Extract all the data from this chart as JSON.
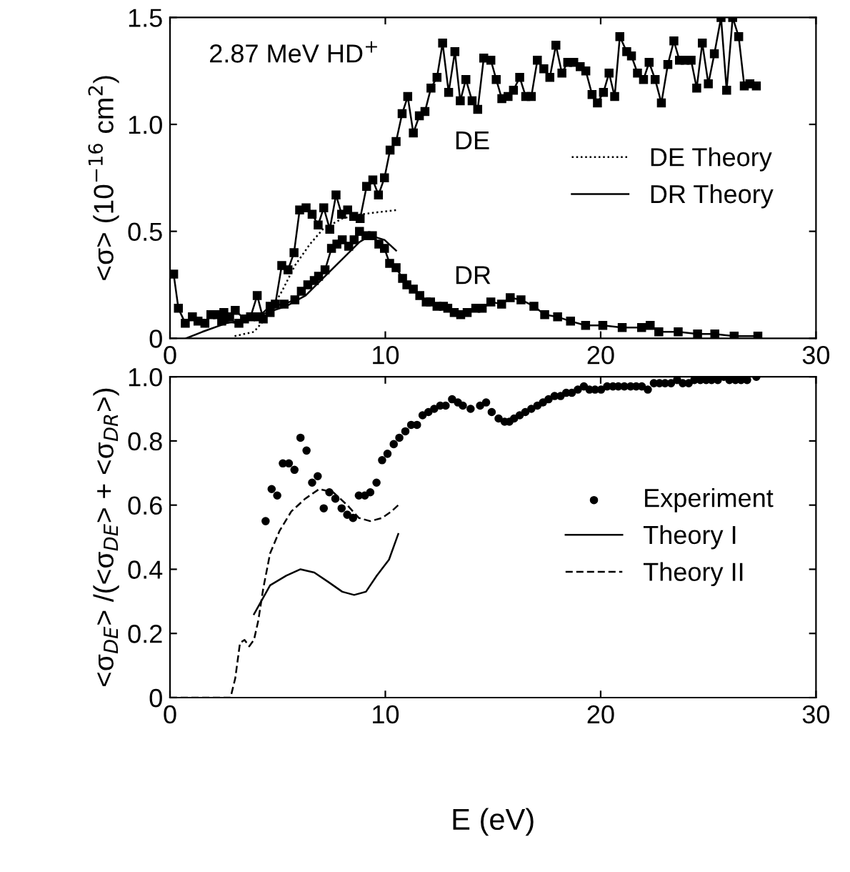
{
  "chart_data": [
    {
      "type": "line",
      "ylabel": "<σ> (10$^{−16}$ cm$^{2}$)",
      "xlim": [
        0,
        30
      ],
      "xticks": [
        0,
        10,
        20,
        30
      ],
      "ylim": [
        0,
        1.5
      ],
      "yticks": [
        0,
        {
          "value": 0.5,
          "label": "0.5"
        },
        {
          "value": 1.0,
          "label": "1.0"
        },
        {
          "value": 1.5,
          "label": "1.5"
        }
      ],
      "legend": "right",
      "grid": false,
      "annotations": [
        "2.87 MeV HD$^{+}$",
        "DE",
        "DR"
      ],
      "series": [
        {
          "color": "#000000",
          "marker": "square",
          "line_style": "solid",
          "x": [
            0.17,
            0.39,
            0.71,
            1.04,
            1.3,
            1.62,
            1.9,
            2.2,
            2.5,
            2.77,
            3.03,
            3.46,
            3.74,
            4.05,
            4.33,
            4.65,
            4.89,
            5.19,
            5.48,
            5.76,
            6.02,
            6.32,
            6.6,
            6.88,
            7.14,
            7.42,
            7.71,
            7.97,
            8.25,
            8.53,
            8.83,
            9.13,
            9.42,
            9.68,
            9.96,
            10.22,
            10.5,
            10.78,
            11.04,
            11.3,
            11.58,
            11.84,
            12.12,
            12.4,
            12.66,
            12.94,
            13.23,
            13.48,
            13.74,
            14.03,
            14.29,
            14.57,
            14.9,
            15.15,
            15.41,
            15.7,
            15.95,
            16.24,
            16.52,
            16.78,
            17.06,
            17.36,
            17.64,
            17.92,
            18.2,
            18.47,
            18.75,
            19.05,
            19.31,
            19.6,
            19.85,
            20.13,
            20.39,
            20.65,
            20.89,
            21.21,
            21.43,
            21.71,
            21.99,
            22.25,
            22.53,
            22.82,
            23.12,
            23.4,
            23.66,
            23.92,
            24.2,
            24.46,
            24.72,
            25.0,
            25.28,
            25.59,
            25.85,
            26.13,
            26.41,
            26.67,
            26.93,
            27.23
          ],
          "values": [
            0.3,
            0.14,
            0.07,
            0.1,
            0.08,
            0.07,
            0.11,
            0.11,
            0.12,
            0.1,
            0.13,
            0.09,
            0.1,
            0.2,
            0.09,
            0.12,
            0.16,
            0.34,
            0.32,
            0.4,
            0.6,
            0.61,
            0.58,
            0.53,
            0.61,
            0.51,
            0.67,
            0.58,
            0.6,
            0.57,
            0.56,
            0.71,
            0.74,
            0.67,
            0.75,
            0.88,
            0.92,
            1.05,
            1.13,
            0.96,
            1.04,
            1.06,
            1.17,
            1.22,
            1.38,
            1.15,
            1.34,
            1.11,
            1.21,
            1.11,
            1.07,
            1.31,
            1.3,
            1.21,
            1.12,
            1.13,
            1.16,
            1.22,
            1.13,
            1.13,
            1.3,
            1.26,
            1.22,
            1.37,
            1.24,
            1.29,
            1.29,
            1.27,
            1.25,
            1.14,
            1.1,
            1.15,
            1.24,
            1.13,
            1.41,
            1.34,
            1.32,
            1.24,
            1.21,
            1.29,
            1.21,
            1.1,
            1.28,
            1.39,
            1.3,
            1.3,
            1.3,
            1.17,
            1.38,
            1.19,
            1.33,
            1.5,
            1.16,
            1.5,
            1.41,
            1.18,
            1.19,
            1.18
          ]
        },
        {
          "color": "#000000",
          "marker": "square",
          "line_style": "solid",
          "x": [
            2.4,
            3.2,
            4.1,
            4.65,
            5.3,
            5.8,
            6.1,
            6.4,
            6.7,
            6.9,
            7.2,
            7.5,
            7.75,
            8.0,
            8.3,
            8.55,
            8.8,
            9.1,
            9.4,
            9.7,
            9.96,
            10.2,
            10.5,
            10.8,
            11.0,
            11.3,
            11.6,
            11.9,
            12.1,
            12.4,
            12.7,
            12.9,
            13.2,
            13.5,
            13.8,
            14.2,
            14.5,
            14.9,
            15.4,
            15.8,
            16.3,
            16.9,
            17.4,
            18.0,
            18.6,
            19.3,
            20.1,
            21.0,
            21.9,
            22.3,
            22.7,
            23.6,
            24.5,
            25.3,
            26.2,
            27.3
          ],
          "values": [
            0.08,
            0.07,
            0.1,
            0.15,
            0.16,
            0.18,
            0.22,
            0.25,
            0.27,
            0.29,
            0.32,
            0.42,
            0.44,
            0.46,
            0.43,
            0.46,
            0.5,
            0.48,
            0.48,
            0.44,
            0.42,
            0.35,
            0.33,
            0.28,
            0.25,
            0.23,
            0.2,
            0.17,
            0.17,
            0.15,
            0.15,
            0.14,
            0.12,
            0.11,
            0.12,
            0.14,
            0.14,
            0.17,
            0.16,
            0.19,
            0.18,
            0.15,
            0.11,
            0.1,
            0.08,
            0.06,
            0.06,
            0.05,
            0.05,
            0.06,
            0.03,
            0.03,
            0.02,
            0.02,
            0.01,
            0.01
          ]
        },
        {
          "name": "DE Theory",
          "color": "#000000",
          "marker": "none",
          "line_style": "dotted",
          "x": [
            3.0,
            3.9,
            4.5,
            5.2,
            5.8,
            6.5,
            7.1,
            8.0,
            8.9,
            9.7,
            10.6
          ],
          "values": [
            0.01,
            0.03,
            0.1,
            0.22,
            0.34,
            0.44,
            0.51,
            0.56,
            0.58,
            0.59,
            0.6
          ]
        },
        {
          "name": "DR Theory",
          "color": "#000000",
          "marker": "none",
          "line_style": "solid",
          "x": [
            0.76,
            1.5,
            2.6,
            3.7,
            4.5,
            5.4,
            6.3,
            7.1,
            8.0,
            8.8,
            9.3,
            9.96,
            10.5
          ],
          "values": [
            0,
            0.03,
            0.07,
            0.09,
            0.12,
            0.15,
            0.2,
            0.28,
            0.37,
            0.45,
            0.48,
            0.46,
            0.41
          ]
        }
      ]
    },
    {
      "type": "line",
      "xlabel": "E (eV)",
      "ylabel": "<σ$_{DE}$> /(<σ$_{DE}$> + <σ$_{DR}$>)",
      "xlim": [
        0,
        30
      ],
      "xticks": [
        0,
        10,
        20,
        30
      ],
      "ylim": [
        0,
        1.0
      ],
      "yticks": [
        0,
        {
          "value": 0.2,
          "label": "0.2"
        },
        {
          "value": 0.4,
          "label": "0.4"
        },
        {
          "value": 0.6,
          "label": "0.6"
        },
        {
          "value": 0.8,
          "label": "0.8"
        },
        {
          "value": 1.0,
          "label": "1.0"
        }
      ],
      "legend": "right",
      "grid": false,
      "series": [
        {
          "name": "Experiment",
          "type": "scatter",
          "color": "#000000",
          "marker": "circle",
          "x": [
            4.44,
            4.72,
            4.98,
            5.24,
            5.52,
            5.78,
            6.06,
            6.34,
            6.6,
            6.86,
            7.14,
            7.4,
            7.68,
            7.97,
            8.23,
            8.5,
            8.77,
            9.05,
            9.3,
            9.59,
            9.85,
            10.1,
            10.39,
            10.65,
            10.93,
            11.2,
            11.47,
            11.73,
            12.0,
            12.27,
            12.55,
            12.8,
            13.1,
            13.37,
            13.6,
            13.96,
            14.4,
            14.68,
            14.94,
            15.26,
            15.54,
            15.76,
            15.98,
            16.24,
            16.5,
            16.78,
            17.06,
            17.32,
            17.58,
            17.86,
            18.14,
            18.4,
            18.66,
            18.94,
            19.22,
            19.48,
            19.74,
            20.02,
            20.3,
            20.57,
            20.82,
            21.1,
            21.39,
            21.65,
            21.91,
            22.19,
            22.47,
            22.73,
            22.99,
            23.27,
            23.55,
            23.81,
            24.09,
            24.35,
            24.63,
            24.9,
            25.15,
            25.44,
            25.72,
            25.98,
            26.26,
            26.52,
            26.8,
            27.23
          ],
          "values": [
            0.55,
            0.65,
            0.63,
            0.73,
            0.73,
            0.71,
            0.81,
            0.77,
            0.67,
            0.69,
            0.59,
            0.64,
            0.62,
            0.59,
            0.57,
            0.56,
            0.63,
            0.63,
            0.64,
            0.67,
            0.74,
            0.76,
            0.79,
            0.81,
            0.83,
            0.85,
            0.85,
            0.88,
            0.89,
            0.9,
            0.91,
            0.91,
            0.93,
            0.92,
            0.91,
            0.9,
            0.91,
            0.92,
            0.89,
            0.87,
            0.86,
            0.86,
            0.87,
            0.88,
            0.89,
            0.9,
            0.91,
            0.92,
            0.93,
            0.94,
            0.94,
            0.95,
            0.95,
            0.96,
            0.97,
            0.96,
            0.96,
            0.96,
            0.97,
            0.97,
            0.97,
            0.97,
            0.97,
            0.97,
            0.97,
            0.96,
            0.98,
            0.98,
            0.98,
            0.98,
            0.99,
            0.98,
            0.98,
            0.99,
            0.99,
            0.99,
            0.99,
            0.99,
            1.0,
            0.99,
            0.99,
            0.99,
            0.99,
            1.0
          ]
        },
        {
          "name": "Theory I",
          "color": "#000000",
          "marker": "none",
          "line_style": "solid",
          "x": [
            3.9,
            4.65,
            5.4,
            6.06,
            6.7,
            7.36,
            8.0,
            8.55,
            9.1,
            9.6,
            10.17,
            10.6
          ],
          "values": [
            0.26,
            0.35,
            0.38,
            0.4,
            0.39,
            0.36,
            0.33,
            0.32,
            0.33,
            0.38,
            0.43,
            0.51
          ]
        },
        {
          "name": "Theory II",
          "color": "#000000",
          "marker": "none",
          "line_style": "dashed",
          "x": [
            0,
            2.81,
            3.03,
            3.25,
            3.46,
            3.68,
            3.9,
            4.1,
            4.33,
            4.65,
            5.09,
            5.63,
            6.28,
            6.93,
            7.58,
            8.23,
            8.77,
            9.3,
            9.85,
            10.28,
            10.6
          ],
          "values": [
            0,
            0,
            0.06,
            0.17,
            0.18,
            0.16,
            0.18,
            0.24,
            0.34,
            0.45,
            0.52,
            0.58,
            0.62,
            0.65,
            0.64,
            0.6,
            0.56,
            0.55,
            0.56,
            0.58,
            0.6
          ]
        }
      ]
    }
  ]
}
